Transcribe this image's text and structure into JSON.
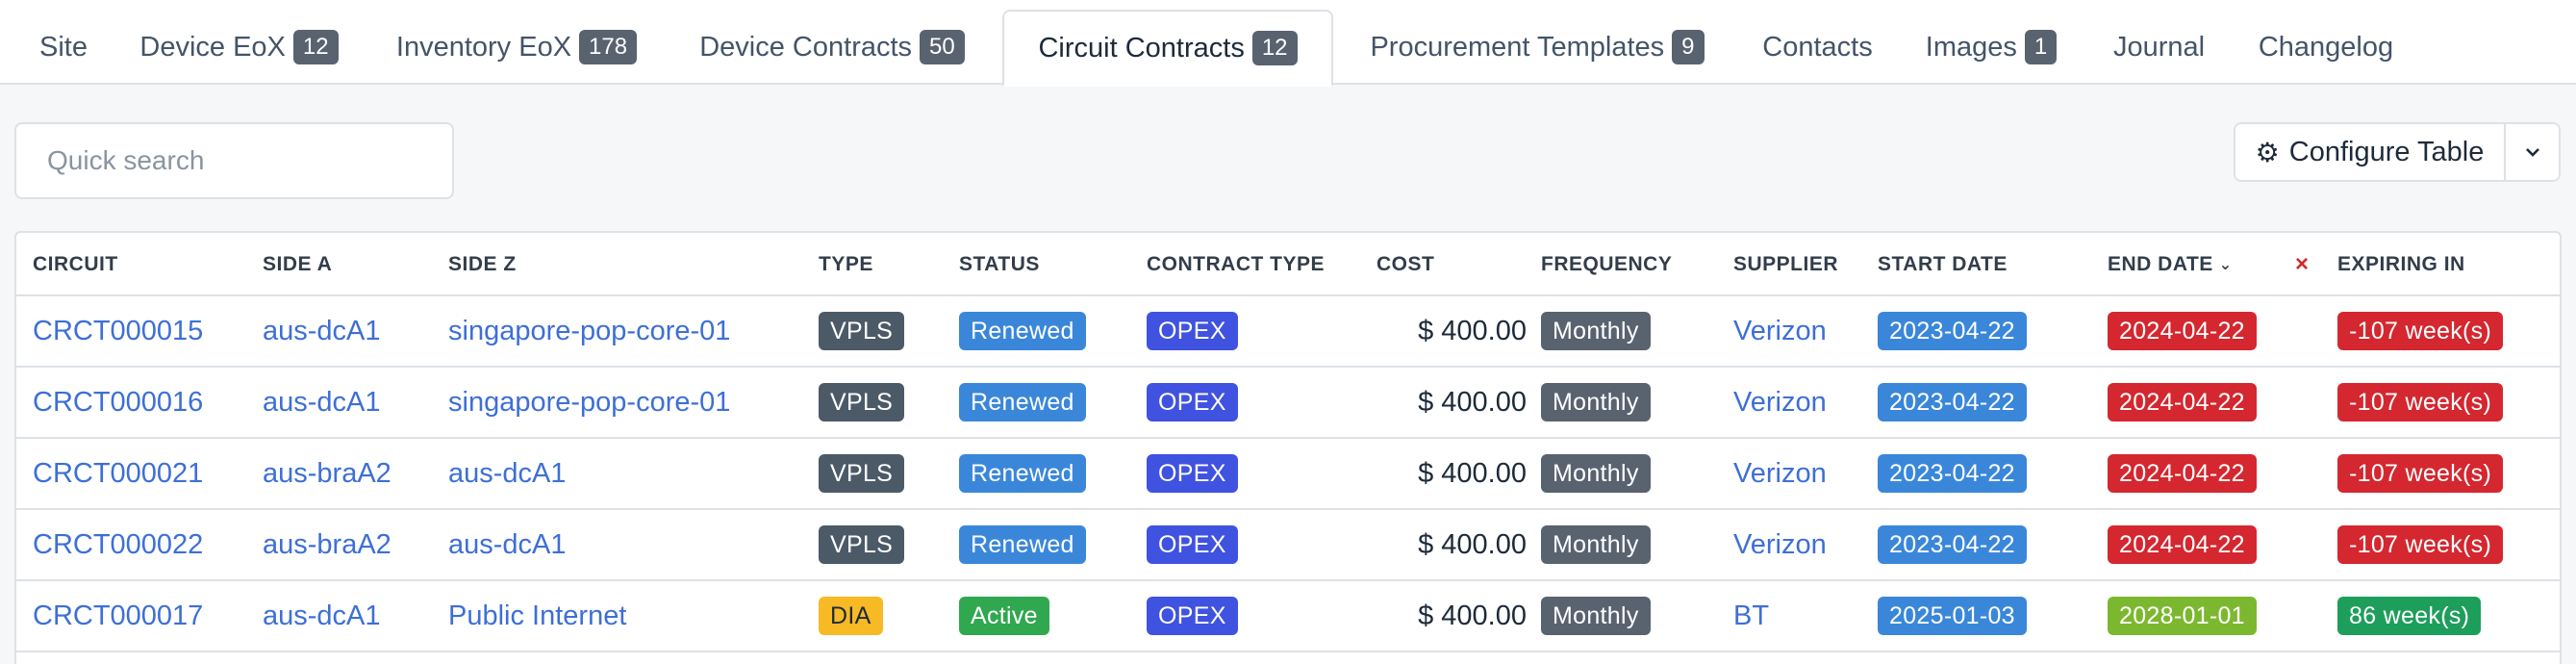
{
  "tabs": [
    {
      "label": "Site",
      "count": null,
      "active": false
    },
    {
      "label": "Device EoX",
      "count": "12",
      "active": false
    },
    {
      "label": "Inventory EoX",
      "count": "178",
      "active": false
    },
    {
      "label": "Device Contracts",
      "count": "50",
      "active": false
    },
    {
      "label": "Circuit Contracts",
      "count": "12",
      "active": true
    },
    {
      "label": "Procurement Templates",
      "count": "9",
      "active": false
    },
    {
      "label": "Contacts",
      "count": null,
      "active": false
    },
    {
      "label": "Images",
      "count": "1",
      "active": false
    },
    {
      "label": "Journal",
      "count": null,
      "active": false
    },
    {
      "label": "Changelog",
      "count": null,
      "active": false
    }
  ],
  "search": {
    "placeholder": "Quick search",
    "value": ""
  },
  "toolbar": {
    "configure_label": "Configure Table",
    "configure_icon": "gear-icon",
    "menu_icon": "chevron-down-icon"
  },
  "table": {
    "columns": [
      "CIRCUIT",
      "SIDE A",
      "SIDE Z",
      "TYPE",
      "STATUS",
      "CONTRACT TYPE",
      "COST",
      "FREQUENCY",
      "SUPPLIER",
      "START DATE",
      "END DATE",
      "×",
      "EXPIRING IN"
    ],
    "sorted_column": "END DATE",
    "rows": [
      {
        "circuit": "CRCT000015",
        "side_a": "aus-dcA1",
        "side_z": "singapore-pop-core-01",
        "type": "VPLS",
        "status": "Renewed",
        "contract_type": "OPEX",
        "cost": "$ 400.00",
        "frequency": "Monthly",
        "supplier": "Verizon",
        "start_date": "2023-04-22",
        "end_date": "2024-04-22",
        "expiring_in": "-107 week(s)"
      },
      {
        "circuit": "CRCT000016",
        "side_a": "aus-dcA1",
        "side_z": "singapore-pop-core-01",
        "type": "VPLS",
        "status": "Renewed",
        "contract_type": "OPEX",
        "cost": "$ 400.00",
        "frequency": "Monthly",
        "supplier": "Verizon",
        "start_date": "2023-04-22",
        "end_date": "2024-04-22",
        "expiring_in": "-107 week(s)"
      },
      {
        "circuit": "CRCT000021",
        "side_a": "aus-braA2",
        "side_z": "aus-dcA1",
        "type": "VPLS",
        "status": "Renewed",
        "contract_type": "OPEX",
        "cost": "$ 400.00",
        "frequency": "Monthly",
        "supplier": "Verizon",
        "start_date": "2023-04-22",
        "end_date": "2024-04-22",
        "expiring_in": "-107 week(s)"
      },
      {
        "circuit": "CRCT000022",
        "side_a": "aus-braA2",
        "side_z": "aus-dcA1",
        "type": "VPLS",
        "status": "Renewed",
        "contract_type": "OPEX",
        "cost": "$ 400.00",
        "frequency": "Monthly",
        "supplier": "Verizon",
        "start_date": "2023-04-22",
        "end_date": "2024-04-22",
        "expiring_in": "-107 week(s)"
      },
      {
        "circuit": "CRCT000017",
        "side_a": "aus-dcA1",
        "side_z": "Public Internet",
        "type": "DIA",
        "status": "Active",
        "contract_type": "OPEX",
        "cost": "$ 400.00",
        "frequency": "Monthly",
        "supplier": "BT",
        "start_date": "2025-01-03",
        "end_date": "2028-01-01",
        "expiring_in": "86 week(s)"
      }
    ]
  },
  "colors": {
    "link": "#3d6fd6",
    "type_vpls": "#4b5a66",
    "type_dia": "#f7b924",
    "status_renewed": "#3a87da",
    "status_active": "#2fa84f",
    "contract_opex": "#3f52e0",
    "frequency": "#59626f",
    "start_date": "#3a87da",
    "end_date_expired": "#d4272f",
    "end_date_future": "#7cb82f",
    "expiring_negative": "#d4272f",
    "expiring_positive": "#1e9e5b"
  }
}
